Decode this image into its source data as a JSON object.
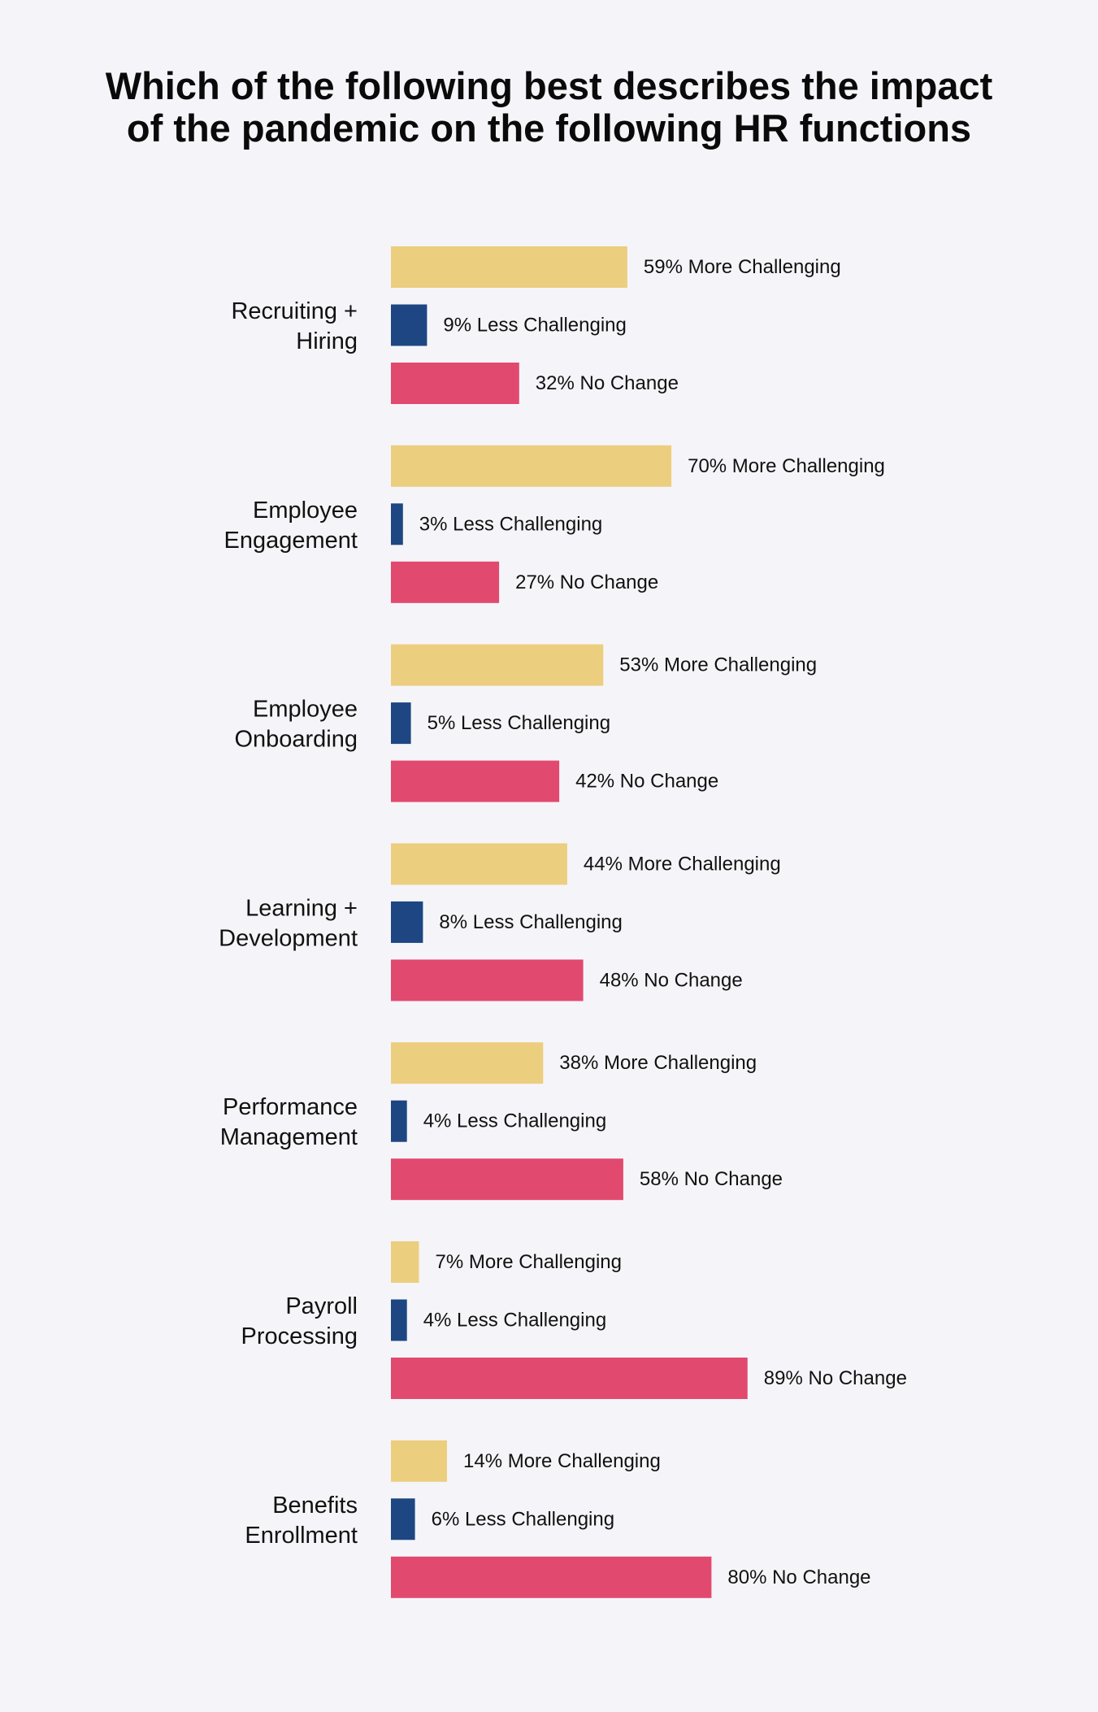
{
  "title_lines": [
    "Which of the following best describes the impact",
    "of the pandemic on the following HR functions"
  ],
  "colors": {
    "more": "#ecce7f",
    "less": "#1d4683",
    "nochange": "#e2496f",
    "background": "#f5f5f9"
  },
  "chart_data": {
    "type": "bar",
    "orientation": "horizontal",
    "title": "Which of the following best describes the impact of the pandemic on the following HR functions",
    "xlabel": "",
    "ylabel": "",
    "xlim": [
      0,
      100
    ],
    "grid": false,
    "legend": "none",
    "categories": [
      [
        "Recruiting +",
        "Hiring"
      ],
      [
        "Employee",
        "Engagement"
      ],
      [
        "Employee",
        "Onboarding"
      ],
      [
        "Learning +",
        "Development"
      ],
      [
        "Performance",
        "Management"
      ],
      [
        "Payroll",
        "Processing"
      ],
      [
        "Benefits",
        "Enrollment"
      ]
    ],
    "series": [
      {
        "name": "More Challenging",
        "values": [
          59,
          70,
          53,
          44,
          38,
          7,
          14
        ],
        "labels": [
          "59% More Challenging",
          "70% More Challenging",
          "53% More Challenging",
          "44% More Challenging",
          "38% More Challenging",
          "7% More Challenging",
          "14% More Challenging"
        ]
      },
      {
        "name": "Less Challenging",
        "values": [
          9,
          3,
          5,
          8,
          4,
          4,
          6
        ],
        "labels": [
          "9% Less Challenging",
          "3% Less Challenging",
          "5% Less Challenging",
          "8% Less Challenging",
          "4% Less Challenging",
          "4% Less Challenging",
          "6% Less Challenging"
        ]
      },
      {
        "name": "No Change",
        "values": [
          32,
          27,
          42,
          48,
          58,
          89,
          80
        ],
        "labels": [
          "32% No Change",
          "27% No Change",
          "42% No Change",
          "48% No Change",
          "58% No Change",
          "89% No Change",
          "80% No Change"
        ]
      }
    ]
  }
}
